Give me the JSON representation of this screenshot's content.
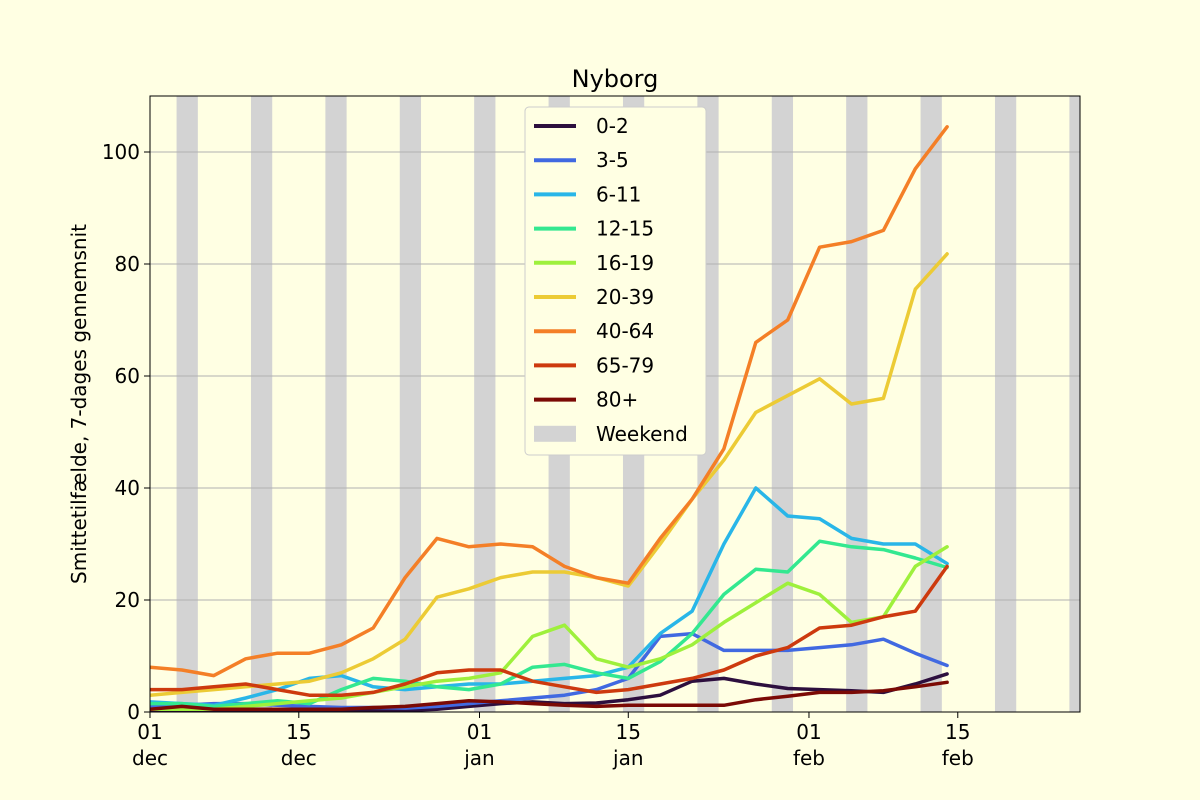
{
  "chart_data": {
    "type": "line",
    "title": "Nyborg",
    "xlabel": "",
    "ylabel": "Smittetilfælde, 7-dages gennemsnit",
    "ylim": [
      0,
      110
    ],
    "xlim": [
      0,
      87.5
    ],
    "grid": "y",
    "legend_position": "top-center",
    "yticks": [
      0,
      20,
      40,
      60,
      80,
      100
    ],
    "xticks": [
      {
        "x": 0,
        "day": "01",
        "month": "dec"
      },
      {
        "x": 14,
        "day": "15",
        "month": "dec"
      },
      {
        "x": 31,
        "day": "01",
        "month": "jan"
      },
      {
        "x": 45,
        "day": "15",
        "month": "jan"
      },
      {
        "x": 62,
        "day": "01",
        "month": "feb"
      },
      {
        "x": 76,
        "day": "15",
        "month": "feb"
      }
    ],
    "weekend_label": "Weekend",
    "weekend_color": "#d3d3d3",
    "weekends": [
      [
        2.5,
        4.5
      ],
      [
        9.5,
        11.5
      ],
      [
        16.5,
        18.5
      ],
      [
        23.5,
        25.5
      ],
      [
        30.5,
        32.5
      ],
      [
        37.5,
        39.5
      ],
      [
        44.5,
        46.5
      ],
      [
        51.5,
        53.5
      ],
      [
        58.5,
        60.5
      ],
      [
        65.5,
        67.5
      ],
      [
        72.5,
        74.5
      ],
      [
        79.5,
        81.5
      ],
      [
        86.5,
        88.5
      ]
    ],
    "x": [
      0,
      3,
      6,
      9,
      12,
      15,
      18,
      21,
      24,
      27,
      30,
      33,
      36,
      39,
      42,
      45,
      48,
      51,
      54,
      57,
      60,
      63,
      66,
      69,
      72,
      75
    ],
    "series": [
      {
        "name": "0-2",
        "color": "#2d0f3e",
        "values": [
          0.3,
          0.3,
          0.3,
          0.3,
          0.3,
          0.3,
          0.3,
          0.3,
          0.3,
          0.5,
          1.0,
          1.5,
          1.8,
          1.5,
          1.6,
          2.2,
          3.0,
          5.5,
          6.0,
          5.0,
          4.2,
          4.0,
          3.8,
          3.5,
          5.0,
          6.8
        ]
      },
      {
        "name": "3-5",
        "color": "#4169e1",
        "values": [
          1.0,
          1.2,
          1.5,
          1.5,
          1.2,
          1.0,
          0.8,
          0.8,
          0.7,
          1.0,
          1.5,
          2.0,
          2.5,
          3.0,
          4.0,
          6.0,
          13.5,
          14.0,
          11.0,
          11.0,
          11.0,
          11.5,
          12.0,
          13.0,
          10.5,
          8.3
        ]
      },
      {
        "name": "6-11",
        "color": "#29b6e8",
        "values": [
          1.8,
          1.5,
          1.2,
          2.5,
          4.0,
          6.0,
          6.5,
          4.5,
          4.0,
          4.5,
          5.0,
          5.0,
          5.5,
          6.0,
          6.5,
          8.0,
          14.0,
          18.0,
          30.0,
          40.0,
          35.0,
          34.5,
          31.0,
          30.0,
          30.0,
          26.5
        ]
      },
      {
        "name": "12-15",
        "color": "#33e890",
        "values": [
          1.5,
          1.5,
          1.0,
          1.5,
          2.0,
          1.5,
          4.0,
          6.0,
          5.5,
          4.5,
          4.0,
          5.0,
          8.0,
          8.5,
          7.0,
          6.0,
          9.0,
          14.0,
          21.0,
          25.5,
          25.0,
          30.5,
          29.5,
          29.0,
          27.5,
          25.8
        ]
      },
      {
        "name": "16-19",
        "color": "#9ef03c",
        "values": [
          0.5,
          0.5,
          0.5,
          1.0,
          1.5,
          2.0,
          2.5,
          3.5,
          4.5,
          5.5,
          6.0,
          7.0,
          13.5,
          15.5,
          9.5,
          8.0,
          9.5,
          12.0,
          16.0,
          19.5,
          23.0,
          21.0,
          16.0,
          17.0,
          26.0,
          29.5
        ]
      },
      {
        "name": "20-39",
        "color": "#eccb35",
        "values": [
          3.0,
          3.5,
          4.0,
          4.5,
          5.0,
          5.5,
          7.0,
          9.5,
          13.0,
          20.5,
          22.0,
          24.0,
          25.0,
          25.0,
          24.0,
          22.5,
          30.0,
          38.0,
          45.0,
          53.5,
          56.5,
          59.5,
          55.0,
          56.0,
          75.5,
          81.8
        ]
      },
      {
        "name": "40-64",
        "color": "#f47f27",
        "values": [
          8.0,
          7.5,
          6.5,
          9.5,
          10.5,
          10.5,
          12.0,
          15.0,
          24.0,
          31.0,
          29.5,
          30.0,
          29.5,
          26.0,
          24.0,
          23.0,
          31.0,
          38.0,
          47.0,
          66.0,
          70.0,
          83.0,
          84.0,
          86.0,
          97.0,
          104.5
        ]
      },
      {
        "name": "65-79",
        "color": "#cd3a0e",
        "values": [
          4.0,
          4.0,
          4.5,
          5.0,
          4.0,
          3.0,
          3.0,
          3.5,
          5.0,
          7.0,
          7.5,
          7.5,
          5.5,
          4.5,
          3.5,
          4.0,
          5.0,
          6.0,
          7.5,
          10.0,
          11.5,
          15.0,
          15.5,
          17.0,
          18.0,
          26.0
        ]
      },
      {
        "name": "80+",
        "color": "#7b0a05",
        "values": [
          0.5,
          1.0,
          0.5,
          0.5,
          0.5,
          0.5,
          0.5,
          0.8,
          1.0,
          1.5,
          2.0,
          1.8,
          1.5,
          1.2,
          1.0,
          1.2,
          1.2,
          1.2,
          1.2,
          2.2,
          2.8,
          3.5,
          3.5,
          3.8,
          4.5,
          5.3
        ]
      }
    ]
  }
}
